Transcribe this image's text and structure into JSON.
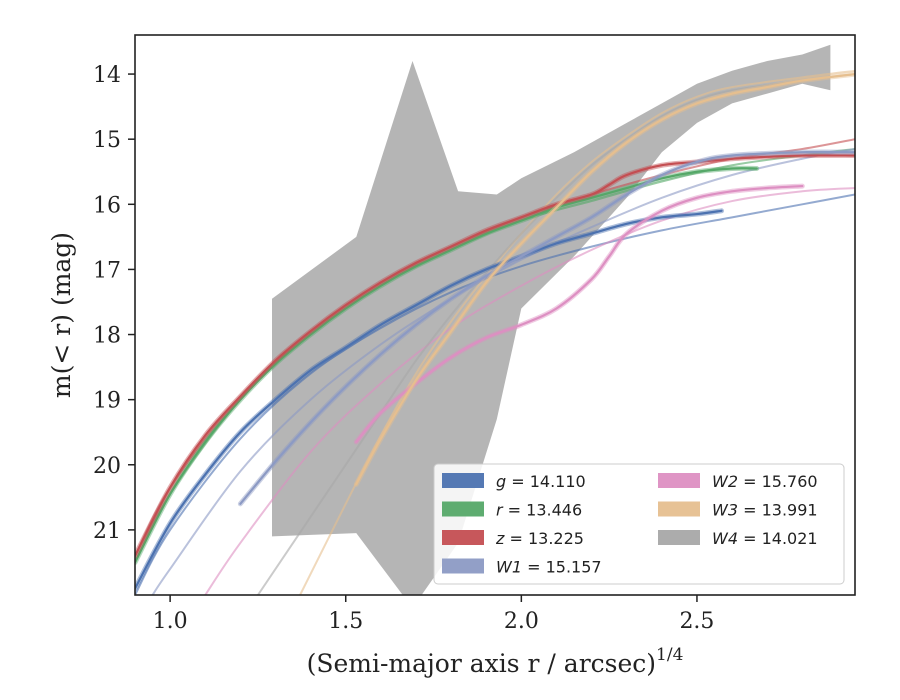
{
  "chart_data": {
    "type": "line",
    "xlabel": "(Semi-major axis r / arcsec)",
    "xlabel_sup": "1/4",
    "ylabel": "m(< r) (mag)",
    "xlim": [
      0.9,
      2.95
    ],
    "ylim": [
      22.0,
      13.4
    ],
    "y_inverted": true,
    "x_ticks": [
      1.0,
      1.5,
      2.0,
      2.5
    ],
    "x_tick_labels": [
      "1.0",
      "1.5",
      "2.0",
      "2.5"
    ],
    "y_ticks": [
      14,
      15,
      16,
      17,
      18,
      19,
      20,
      21
    ],
    "y_tick_labels": [
      "14",
      "15",
      "16",
      "17",
      "18",
      "19",
      "20",
      "21"
    ],
    "legend_position": "lower-right",
    "legend_columns": 2,
    "series": [
      {
        "name": "g = 14.110",
        "legend_var": "g",
        "legend_value": "= 14.110",
        "color": "#4c72b0",
        "data_x": [
          0.9,
          1.0,
          1.1,
          1.2,
          1.3,
          1.4,
          1.5,
          1.6,
          1.7,
          1.8,
          1.9,
          2.0,
          2.1,
          2.2,
          2.3,
          2.4,
          2.5,
          2.57
        ],
        "data_y": [
          21.9,
          20.9,
          20.15,
          19.5,
          19.0,
          18.55,
          18.2,
          17.85,
          17.55,
          17.25,
          17.0,
          16.8,
          16.6,
          16.45,
          16.3,
          16.2,
          16.15,
          16.1
        ],
        "model_x": [
          0.9,
          1.0,
          1.2,
          1.4,
          1.6,
          1.8,
          2.0,
          2.2,
          2.4,
          2.6,
          2.8,
          2.95
        ],
        "model_y": [
          22.0,
          21.0,
          19.6,
          18.6,
          17.9,
          17.35,
          16.95,
          16.65,
          16.4,
          16.2,
          16.0,
          15.85
        ]
      },
      {
        "name": "r = 13.446",
        "legend_var": "r",
        "legend_value": "= 13.446",
        "color": "#55a868",
        "data_x": [
          0.9,
          1.0,
          1.1,
          1.2,
          1.3,
          1.4,
          1.5,
          1.6,
          1.7,
          1.8,
          1.9,
          2.0,
          2.1,
          2.2,
          2.3,
          2.4,
          2.5,
          2.6,
          2.67
        ],
        "data_y": [
          21.5,
          20.45,
          19.65,
          19.0,
          18.45,
          18.0,
          17.6,
          17.25,
          16.95,
          16.7,
          16.45,
          16.25,
          16.05,
          15.9,
          15.75,
          15.6,
          15.5,
          15.45,
          15.45
        ],
        "model_x": [
          0.9,
          1.0,
          1.2,
          1.4,
          1.6,
          1.8,
          2.0,
          2.2,
          2.4,
          2.6,
          2.8,
          2.95
        ],
        "model_y": [
          21.5,
          20.45,
          19.0,
          18.0,
          17.25,
          16.7,
          16.25,
          15.95,
          15.65,
          15.4,
          15.25,
          15.15
        ]
      },
      {
        "name": "z = 13.225",
        "legend_var": "z",
        "legend_value": "= 13.225",
        "color": "#c44e52",
        "data_x": [
          0.9,
          1.0,
          1.1,
          1.2,
          1.3,
          1.4,
          1.5,
          1.6,
          1.7,
          1.8,
          1.9,
          2.0,
          2.1,
          2.2,
          2.25,
          2.3,
          2.4,
          2.5,
          2.6,
          2.7,
          2.8,
          2.95
        ],
        "data_y": [
          21.4,
          20.35,
          19.55,
          18.95,
          18.4,
          17.95,
          17.55,
          17.2,
          16.9,
          16.65,
          16.4,
          16.2,
          16.0,
          15.85,
          15.7,
          15.55,
          15.4,
          15.35,
          15.3,
          15.27,
          15.25,
          15.25
        ],
        "model_x": [
          0.9,
          1.0,
          1.2,
          1.4,
          1.6,
          1.8,
          2.0,
          2.2,
          2.4,
          2.6,
          2.8,
          2.95
        ],
        "model_y": [
          21.4,
          20.35,
          18.95,
          17.95,
          17.2,
          16.65,
          16.2,
          15.85,
          15.55,
          15.3,
          15.15,
          15.0
        ]
      },
      {
        "name": "W1 = 15.157",
        "legend_var": "W1",
        "legend_value": "= 15.157",
        "color": "#8c9ac4",
        "data_x": [
          1.2,
          1.3,
          1.4,
          1.5,
          1.6,
          1.7,
          1.8,
          1.9,
          2.0,
          2.1,
          2.2,
          2.3,
          2.4,
          2.5,
          2.6,
          2.8,
          2.95
        ],
        "data_y": [
          20.6,
          19.95,
          19.35,
          18.8,
          18.3,
          17.85,
          17.45,
          17.1,
          16.8,
          16.5,
          16.2,
          15.85,
          15.55,
          15.35,
          15.25,
          15.2,
          15.2
        ],
        "model_x": [
          0.95,
          1.0,
          1.2,
          1.4,
          1.6,
          1.8,
          2.0,
          2.2,
          2.4,
          2.6,
          2.8,
          2.95
        ],
        "model_y": [
          22.0,
          21.6,
          20.1,
          19.0,
          18.15,
          17.45,
          16.85,
          16.35,
          15.9,
          15.55,
          15.3,
          15.15
        ]
      },
      {
        "name": "W2 = 15.760",
        "legend_var": "W2",
        "legend_value": "= 15.760",
        "color": "#dd8fc2",
        "data_x": [
          1.53,
          1.6,
          1.7,
          1.8,
          1.9,
          2.0,
          2.1,
          2.2,
          2.25,
          2.3,
          2.4,
          2.5,
          2.6,
          2.7,
          2.8
        ],
        "data_y": [
          19.65,
          19.2,
          18.75,
          18.35,
          18.05,
          17.85,
          17.6,
          17.15,
          16.8,
          16.45,
          16.1,
          15.9,
          15.8,
          15.75,
          15.72
        ],
        "model_x": [
          1.1,
          1.2,
          1.4,
          1.6,
          1.8,
          2.0,
          2.2,
          2.4,
          2.6,
          2.8,
          2.95
        ],
        "model_y": [
          22.0,
          21.2,
          19.8,
          18.75,
          17.9,
          17.25,
          16.7,
          16.25,
          15.95,
          15.8,
          15.75
        ]
      },
      {
        "name": "W3 = 13.991",
        "legend_var": "W3",
        "legend_value": "= 13.991",
        "color": "#e6bf8f",
        "data_x": [
          1.53,
          1.6,
          1.7,
          1.8,
          1.9,
          2.0,
          2.1,
          2.2,
          2.3,
          2.4,
          2.5,
          2.6,
          2.7,
          2.8,
          2.95
        ],
        "data_y": [
          20.3,
          19.6,
          18.7,
          17.95,
          17.2,
          16.6,
          16.05,
          15.5,
          15.05,
          14.7,
          14.45,
          14.3,
          14.2,
          14.1,
          14.0
        ],
        "model_x": [
          1.37,
          1.5,
          1.6,
          1.7,
          1.8,
          1.9,
          2.0,
          2.1,
          2.2,
          2.3,
          2.4,
          2.5,
          2.6,
          2.8,
          2.95
        ],
        "model_y": [
          22.0,
          20.6,
          19.55,
          18.6,
          17.8,
          17.1,
          16.45,
          15.85,
          15.35,
          14.95,
          14.6,
          14.35,
          14.2,
          14.05,
          13.95
        ]
      },
      {
        "name": "W4 = 14.021",
        "legend_var": "W4",
        "legend_value": "= 14.021",
        "color": "#a8a8a8",
        "band_x": [
          1.29,
          1.53,
          1.69,
          1.82,
          1.93,
          2.0,
          2.15,
          2.3,
          2.4,
          2.5,
          2.6,
          2.7,
          2.8,
          2.88
        ],
        "band_upper": [
          17.45,
          16.5,
          13.8,
          15.8,
          15.85,
          15.6,
          15.2,
          14.75,
          14.45,
          14.15,
          13.95,
          13.8,
          13.7,
          13.55
        ],
        "band_lower": [
          21.1,
          21.05,
          22.2,
          21.2,
          19.3,
          17.6,
          16.8,
          15.9,
          15.2,
          14.75,
          14.45,
          14.3,
          14.15,
          14.25
        ],
        "model_x": [
          1.25,
          1.35,
          1.5,
          1.6,
          1.7,
          1.8,
          1.9,
          2.0,
          2.1,
          2.2,
          2.3,
          2.4,
          2.5,
          2.6,
          2.8,
          2.95
        ],
        "model_y": [
          22.0,
          21.2,
          20.0,
          19.2,
          18.4,
          17.7,
          17.05,
          16.45,
          15.9,
          15.4,
          15.0,
          14.65,
          14.4,
          14.25,
          14.1,
          14.0
        ]
      }
    ]
  }
}
